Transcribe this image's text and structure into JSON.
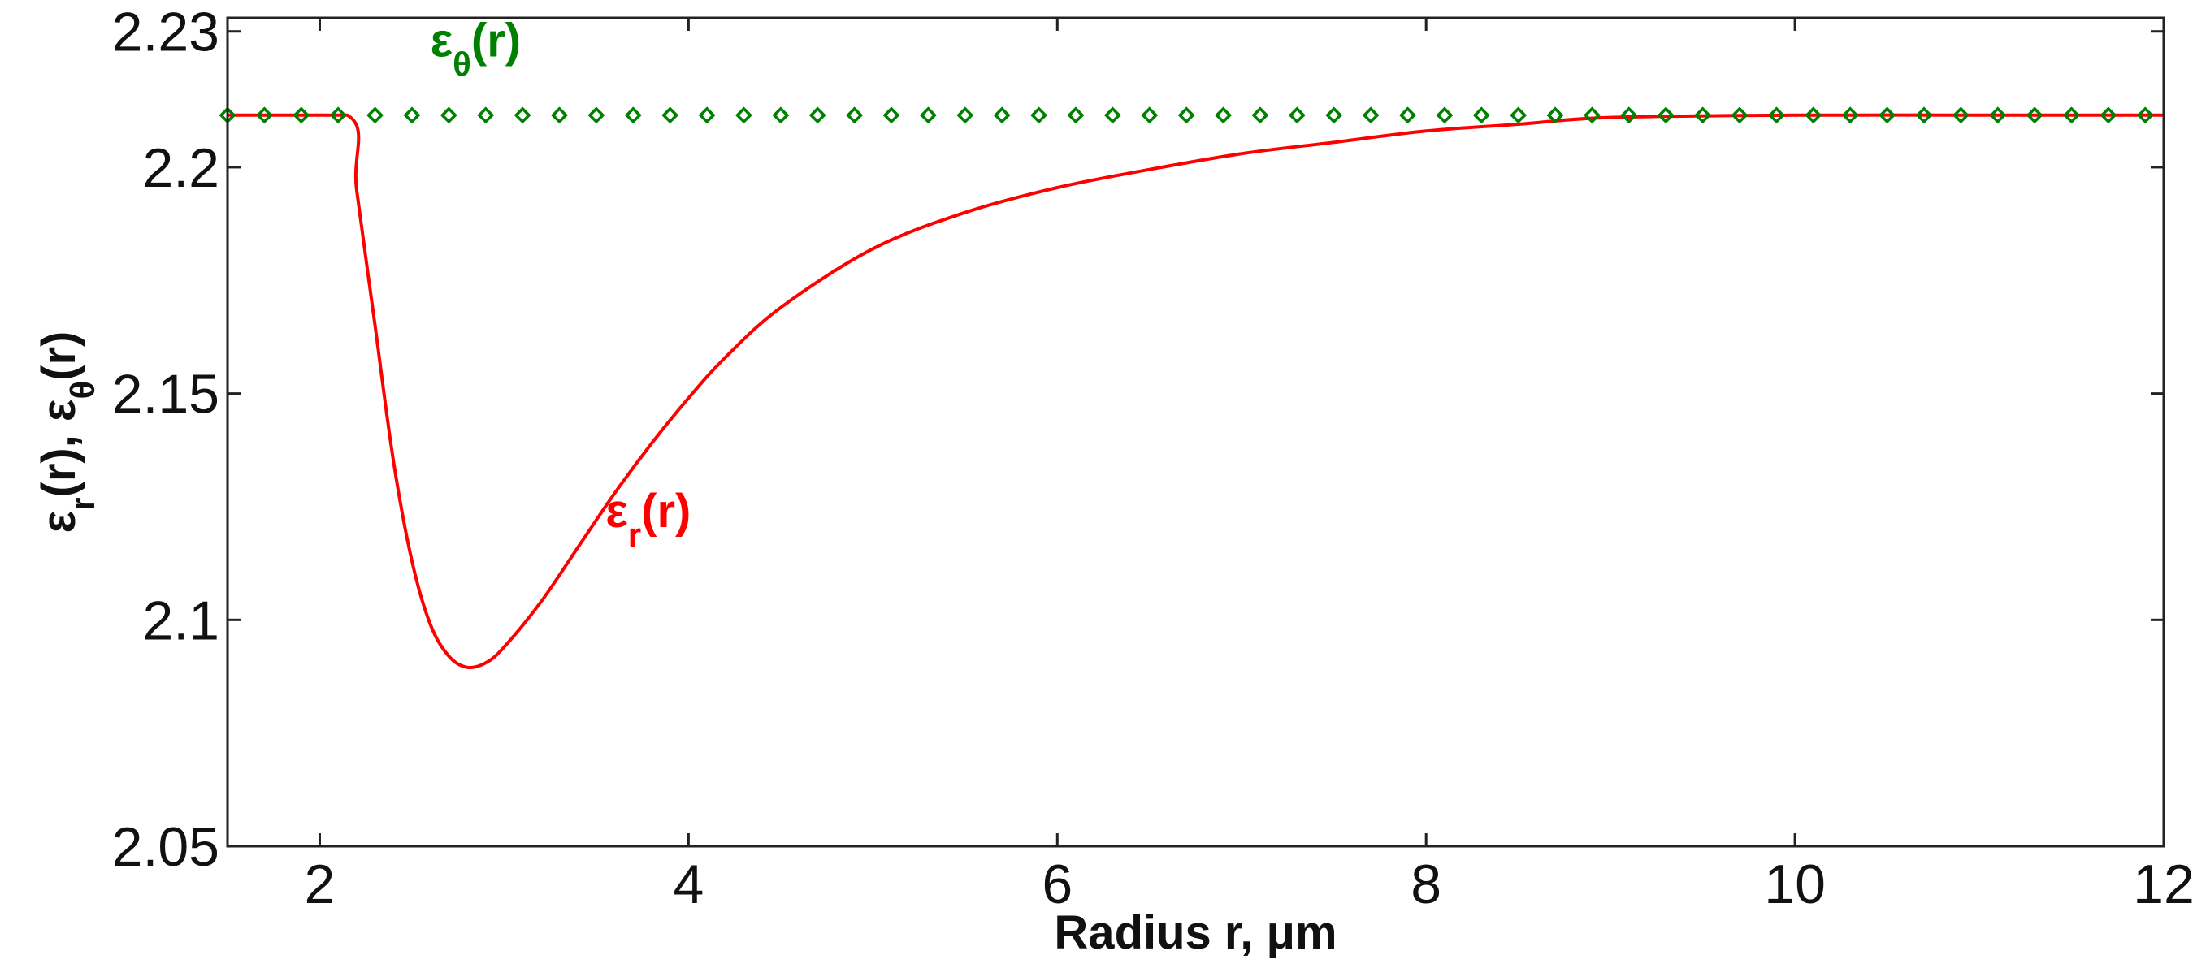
{
  "chart_data": {
    "type": "line",
    "xlabel": "Radius r,  μm",
    "ylabel": {
      "base1": "ε",
      "sub1": "r",
      "rest1": "(r), ",
      "base2": "ε",
      "sub2": "θ",
      "rest2": "(r)"
    },
    "xlim": [
      1.5,
      12
    ],
    "ylim": [
      2.05,
      2.233
    ],
    "xticks": [
      2,
      4,
      6,
      8,
      10,
      12
    ],
    "yticks": [
      2.05,
      2.1,
      2.15,
      2.2,
      2.23
    ],
    "ytick_labels": [
      "2.05",
      "2.1",
      "2.15",
      "2.2",
      "2.23"
    ],
    "grid": false,
    "series": [
      {
        "name": "εr(r)",
        "label_base": "ε",
        "label_sub": "r",
        "label_tail": "(r)",
        "color": "#ff0000",
        "style": "line",
        "x": [
          1.5,
          2.15,
          2.2,
          2.3,
          2.4,
          2.5,
          2.6,
          2.7,
          2.8,
          2.9,
          3.0,
          3.2,
          3.4,
          3.6,
          3.8,
          4.0,
          4.2,
          4.5,
          5.0,
          5.5,
          6.0,
          6.5,
          7.0,
          7.5,
          8.0,
          8.5,
          9.0,
          10.0,
          11.0,
          12.0
        ],
        "y": [
          2.2115,
          2.2115,
          2.195,
          2.165,
          2.135,
          2.113,
          2.099,
          2.092,
          2.0895,
          2.0905,
          2.094,
          2.104,
          2.116,
          2.128,
          2.139,
          2.149,
          2.158,
          2.169,
          2.182,
          2.19,
          2.1955,
          2.1995,
          2.203,
          2.2055,
          2.208,
          2.2095,
          2.211,
          2.2115,
          2.2115,
          2.2115
        ]
      },
      {
        "name": "εθ(r)",
        "label_base": "ε",
        "label_sub": "θ",
        "label_tail": "(r)",
        "color": "#008000",
        "style": "diamond-markers",
        "x": [
          1.5,
          1.7,
          1.9,
          2.1,
          2.3,
          2.5,
          2.7,
          2.9,
          3.1,
          3.3,
          3.5,
          3.7,
          3.9,
          4.1,
          4.3,
          4.5,
          4.7,
          4.9,
          5.1,
          5.3,
          5.5,
          5.7,
          5.9,
          6.1,
          6.3,
          6.5,
          6.7,
          6.9,
          7.1,
          7.3,
          7.5,
          7.7,
          7.9,
          8.1,
          8.3,
          8.5,
          8.7,
          8.9,
          9.1,
          9.3,
          9.5,
          9.7,
          9.9,
          10.1,
          10.3,
          10.5,
          10.7,
          10.9,
          11.1,
          11.3,
          11.5,
          11.7,
          11.9
        ],
        "y_constant": 2.2115
      }
    ]
  }
}
